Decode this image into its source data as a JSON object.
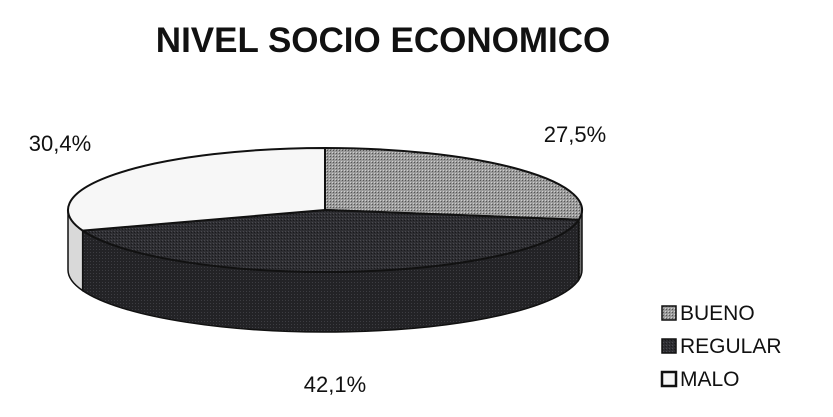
{
  "chart_data": {
    "type": "pie",
    "title": "NIVEL SOCIO ECONOMICO",
    "three_d": true,
    "legend_position": "bottom-right",
    "slices": [
      {
        "name": "BUENO",
        "value": 27.5,
        "label": "27,5%",
        "color": "#8a8a8a",
        "pattern": "dotted"
      },
      {
        "name": "REGULAR",
        "value": 42.1,
        "label": "42,1%",
        "color": "#2b2b2e",
        "pattern": "dark"
      },
      {
        "name": "MALO",
        "value": 30.4,
        "label": "30,4%",
        "color": "#f7f7f7",
        "pattern": "none"
      }
    ]
  }
}
